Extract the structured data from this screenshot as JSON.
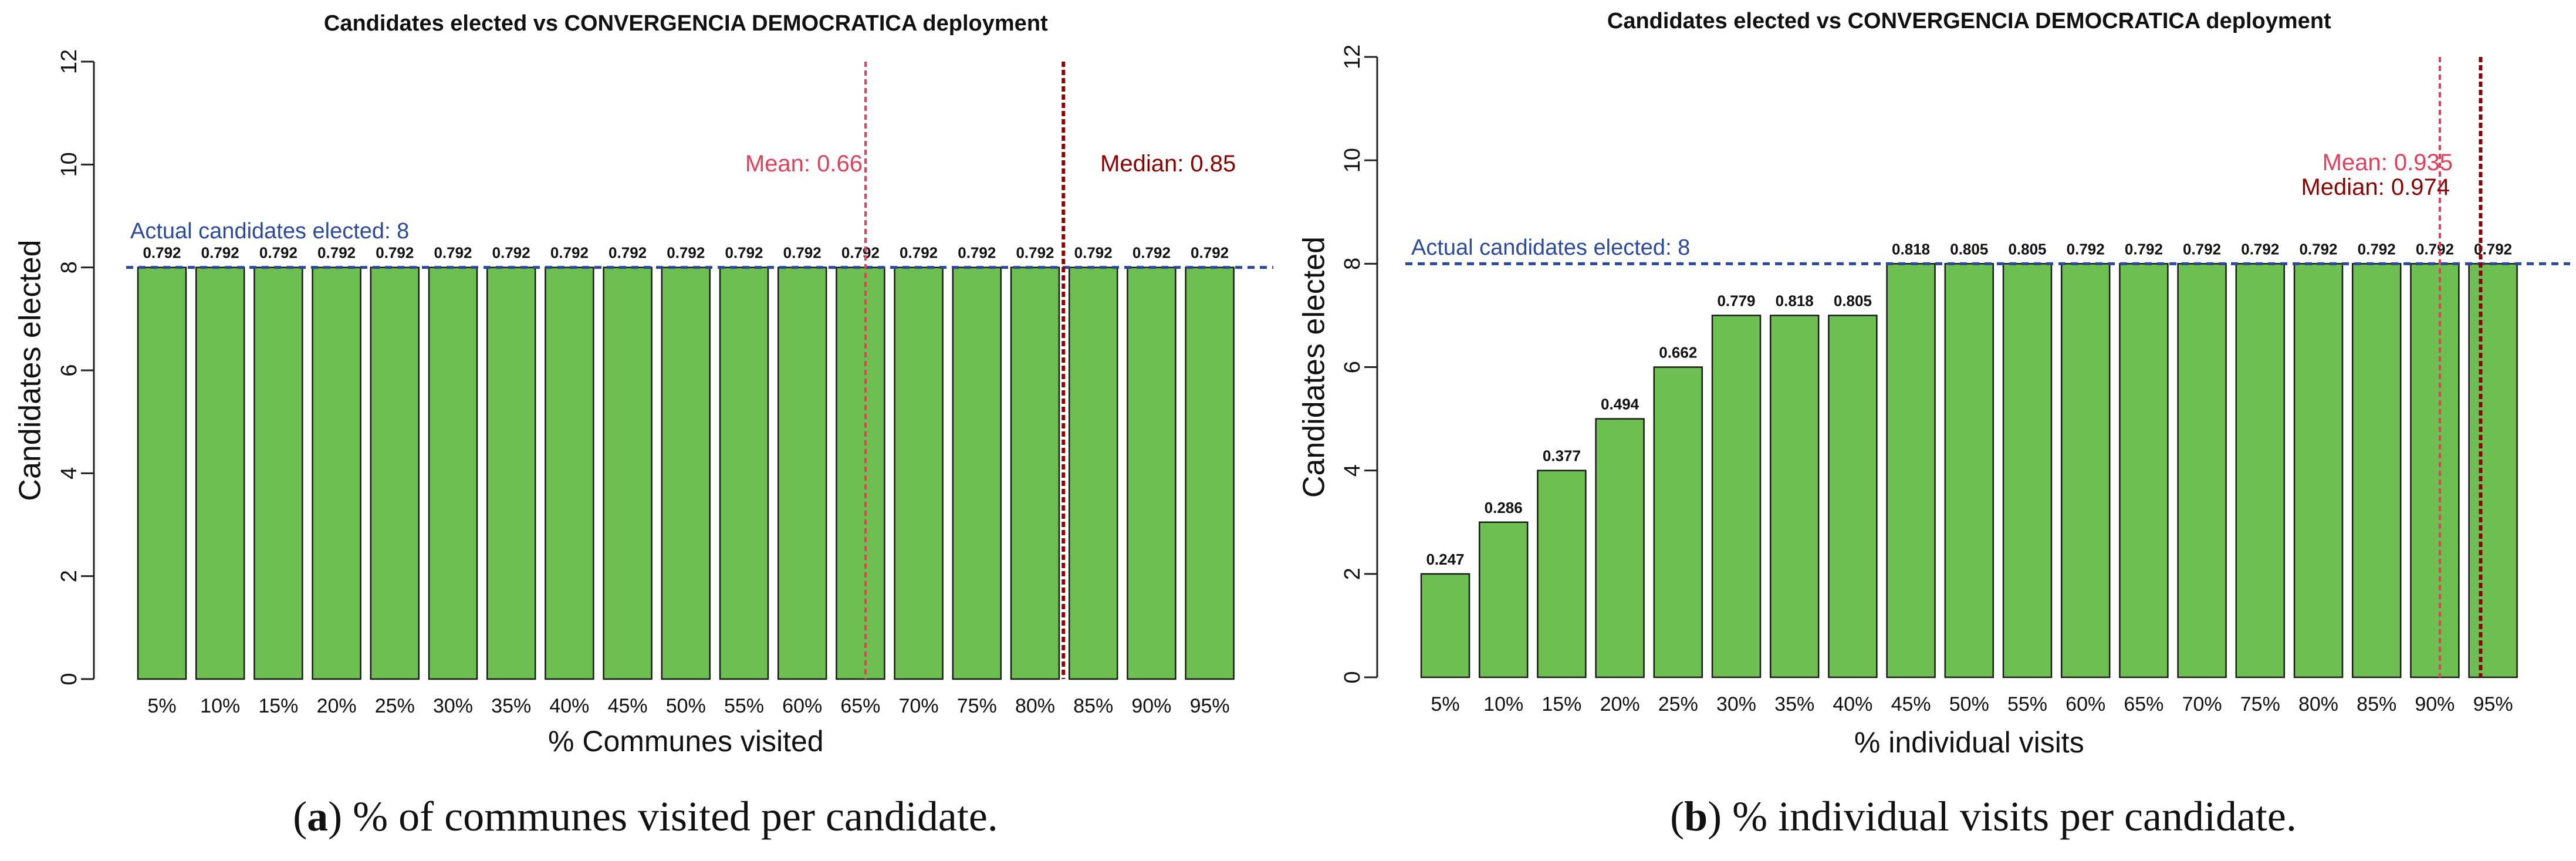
{
  "chart_data": [
    {
      "type": "bar",
      "title": "Candidates elected vs CONVERGENCIA DEMOCRATICA deployment",
      "xlabel": "% Communes visited",
      "ylabel": "Candidates elected",
      "ylim": [
        0,
        12
      ],
      "yticks": [
        "0",
        "2",
        "4",
        "6",
        "8",
        "10",
        "12"
      ],
      "categories": [
        "5%",
        "10%",
        "15%",
        "20%",
        "25%",
        "30%",
        "35%",
        "40%",
        "45%",
        "50%",
        "55%",
        "60%",
        "65%",
        "70%",
        "75%",
        "80%",
        "85%",
        "90%",
        "95%"
      ],
      "values": [
        8,
        8,
        8,
        8,
        8,
        8,
        8,
        8,
        8,
        8,
        8,
        8,
        8,
        8,
        8,
        8,
        8,
        8,
        8
      ],
      "data_labels": [
        "0.792",
        "0.792",
        "0.792",
        "0.792",
        "0.792",
        "0.792",
        "0.792",
        "0.792",
        "0.792",
        "0.792",
        "0.792",
        "0.792",
        "0.792",
        "0.792",
        "0.792",
        "0.792",
        "0.792",
        "0.792",
        "0.792"
      ],
      "reference_line": {
        "value": 8,
        "label": "Actual candidates elected: 8"
      },
      "mean_line": {
        "position": 12.5,
        "label": "Mean: 0.66"
      },
      "median_line": {
        "position": 15.9,
        "label": "Median: 0.85"
      },
      "caption_letter": "a",
      "caption_text": " % of communes visited per candidate."
    },
    {
      "type": "bar",
      "title": "Candidates elected vs CONVERGENCIA DEMOCRATICA deployment",
      "xlabel": "% individual visits",
      "ylabel": "Candidates elected",
      "ylim": [
        0,
        12
      ],
      "yticks": [
        "0",
        "2",
        "4",
        "6",
        "8",
        "10",
        "12"
      ],
      "categories": [
        "5%",
        "10%",
        "15%",
        "20%",
        "25%",
        "30%",
        "35%",
        "40%",
        "45%",
        "50%",
        "55%",
        "60%",
        "65%",
        "70%",
        "75%",
        "80%",
        "85%",
        "90%",
        "95%"
      ],
      "values": [
        2,
        3,
        4,
        5,
        6,
        7,
        7,
        7,
        8,
        8,
        8,
        8,
        8,
        8,
        8,
        8,
        8,
        8,
        8
      ],
      "data_labels": [
        "0.247",
        "0.286",
        "0.377",
        "0.494",
        "0.662",
        "0.779",
        "0.818",
        "0.805",
        "0.818",
        "0.805",
        "0.805",
        "0.792",
        "0.792",
        "0.792",
        "0.792",
        "0.792",
        "0.792",
        "0.792",
        "0.792"
      ],
      "reference_line": {
        "value": 8,
        "label": "Actual candidates elected: 8"
      },
      "mean_line": {
        "position": 17.5,
        "label": "Mean: 0.935"
      },
      "median_line": {
        "position": 18.2,
        "label": "Median: 0.974"
      },
      "caption_letter": "b",
      "caption_text": " % individual visits per candidate."
    }
  ],
  "colors": {
    "bar_fill": "#6cbf50",
    "bar_stroke": "#1a1a1a",
    "reference": "#2b4a9b",
    "mean": "#e0405a",
    "median": "#8b0000",
    "text": "#111111"
  }
}
